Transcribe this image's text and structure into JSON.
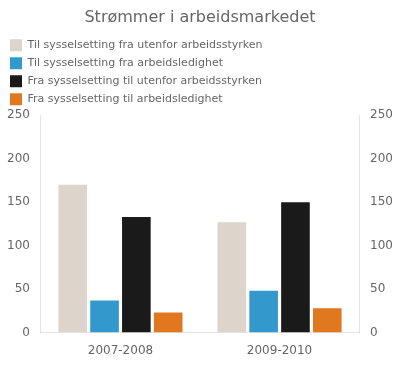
{
  "chart_data": {
    "type": "bar",
    "title": "Strømmer i arbeidsmarkedet",
    "categories": [
      "2007-2008",
      "2009-2010"
    ],
    "series": [
      {
        "name": "Til sysselsetting fra utenfor arbeidsstyrken",
        "color": "#ddd5cc",
        "values": [
          170,
          127
        ]
      },
      {
        "name": "Til sysselsetting fra arbeidsledighet",
        "color": "#3399cc",
        "values": [
          37,
          48
        ]
      },
      {
        "name": "Fra sysselsetting til utenfor arbeidsstyrken",
        "color": "#1a1a1a",
        "values": [
          133,
          150
        ]
      },
      {
        "name": "Fra sysselsetting til arbeidsledighet",
        "color": "#e07820",
        "values": [
          23,
          28
        ]
      }
    ],
    "ylim": [
      0,
      250
    ],
    "yticks": [
      0,
      50,
      100,
      150,
      200,
      250
    ],
    "y2lim": [
      0,
      250
    ],
    "y2ticks": [
      0,
      50,
      100,
      150,
      200,
      250
    ],
    "grid": false,
    "legend": "upper left"
  }
}
